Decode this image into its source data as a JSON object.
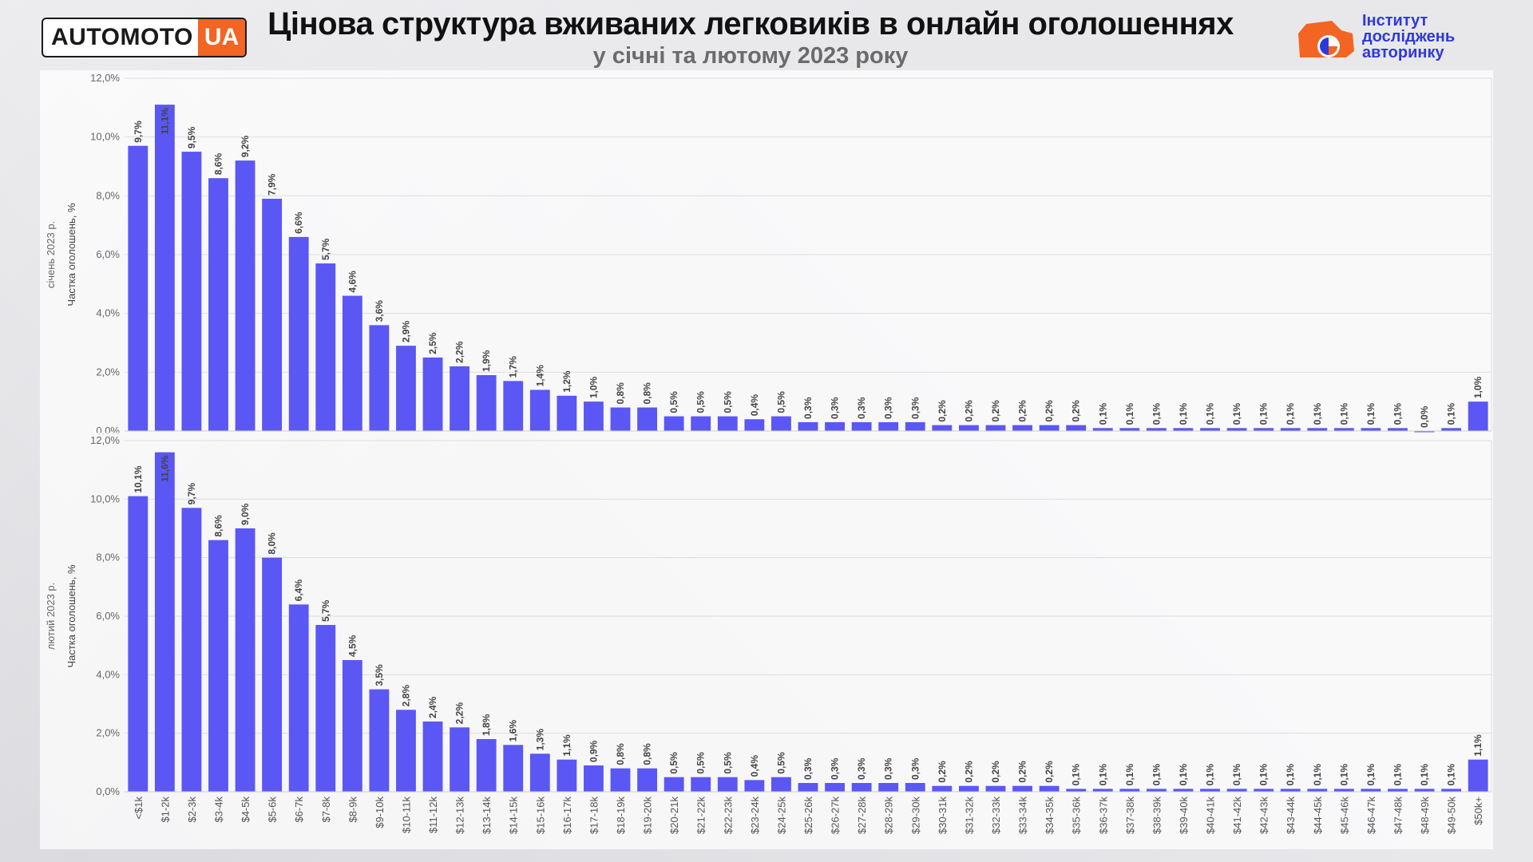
{
  "header": {
    "logo_main": "AUTOMOTO",
    "logo_accent": "UA",
    "title": "Цінова структура вживаних легковиків в онлайн оголошеннях",
    "subtitle": "у січні та лютому 2023 року",
    "institute_line1": "Інститут",
    "institute_line2": "досліджень",
    "institute_line3": "авторинку"
  },
  "colors": {
    "bar": "#5b57f4",
    "accent": "#f26522",
    "institute": "#2f3ad6",
    "grid": "#dedede"
  },
  "chart_data": [
    {
      "type": "bar",
      "title": "",
      "period_label": "січень 2023 р.",
      "ylabel": "Частка оголошень, %",
      "ylim": [
        0,
        12
      ],
      "yticks": [
        "0,0%",
        "2,0%",
        "4,0%",
        "6,0%",
        "8,0%",
        "10,0%",
        "12,0%"
      ],
      "categories": [
        "<$1k",
        "$1-2k",
        "$2-3k",
        "$3-4k",
        "$4-5k",
        "$5-6k",
        "$6-7k",
        "$7-8k",
        "$8-9k",
        "$9-10k",
        "$10-11k",
        "$11-12k",
        "$12-13k",
        "$13-14k",
        "$14-15k",
        "$15-16k",
        "$16-17k",
        "$17-18k",
        "$18-19k",
        "$19-20k",
        "$20-21k",
        "$21-22k",
        "$22-23k",
        "$23-24k",
        "$24-25k",
        "$25-26k",
        "$26-27k",
        "$27-28k",
        "$28-29k",
        "$29-30k",
        "$30-31k",
        "$31-32k",
        "$32-33k",
        "$33-34k",
        "$34-35k",
        "$35-36k",
        "$36-37k",
        "$37-38k",
        "$38-39k",
        "$39-40k",
        "$40-41k",
        "$41-42k",
        "$42-43k",
        "$43-44k",
        "$44-45k",
        "$45-46k",
        "$46-47k",
        "$47-48k",
        "$48-49k",
        "$49-50k",
        "$50k+"
      ],
      "values": [
        9.7,
        11.1,
        9.5,
        8.6,
        9.2,
        7.9,
        6.6,
        5.7,
        4.6,
        3.6,
        2.9,
        2.5,
        2.2,
        1.9,
        1.7,
        1.4,
        1.2,
        1.0,
        0.8,
        0.8,
        0.5,
        0.5,
        0.5,
        0.4,
        0.5,
        0.3,
        0.3,
        0.3,
        0.3,
        0.3,
        0.2,
        0.2,
        0.2,
        0.2,
        0.2,
        0.2,
        0.1,
        0.1,
        0.1,
        0.1,
        0.1,
        0.1,
        0.1,
        0.1,
        0.1,
        0.1,
        0.1,
        0.1,
        0.0,
        0.1,
        1.0
      ],
      "labels": [
        "9,7%",
        "11,1%",
        "9,5%",
        "8,6%",
        "9,2%",
        "7,9%",
        "6,6%",
        "5,7%",
        "4,6%",
        "3,6%",
        "2,9%",
        "2,5%",
        "2,2%",
        "1,9%",
        "1,7%",
        "1,4%",
        "1,2%",
        "1,0%",
        "0,8%",
        "0,8%",
        "0,5%",
        "0,5%",
        "0,5%",
        "0,4%",
        "0,5%",
        "0,3%",
        "0,3%",
        "0,3%",
        "0,3%",
        "0,3%",
        "0,2%",
        "0,2%",
        "0,2%",
        "0,2%",
        "0,2%",
        "0,2%",
        "0,1%",
        "0,1%",
        "0,1%",
        "0,1%",
        "0,1%",
        "0,1%",
        "0,1%",
        "0,1%",
        "0,1%",
        "0,1%",
        "0,1%",
        "0,1%",
        "0,0%",
        "0,1%",
        "1,0%"
      ],
      "show_x_labels": false,
      "grid": true
    },
    {
      "type": "bar",
      "title": "",
      "period_label": "лютий 2023 р.",
      "ylabel": "Частка оголошень, %",
      "ylim": [
        0,
        12
      ],
      "yticks": [
        "0,0%",
        "2,0%",
        "4,0%",
        "6,0%",
        "8,0%",
        "10,0%",
        "12,0%"
      ],
      "categories": [
        "<$1k",
        "$1-2k",
        "$2-3k",
        "$3-4k",
        "$4-5k",
        "$5-6k",
        "$6-7k",
        "$7-8k",
        "$8-9k",
        "$9-10k",
        "$10-11k",
        "$11-12k",
        "$12-13k",
        "$13-14k",
        "$14-15k",
        "$15-16k",
        "$16-17k",
        "$17-18k",
        "$18-19k",
        "$19-20k",
        "$20-21k",
        "$21-22k",
        "$22-23k",
        "$23-24k",
        "$24-25k",
        "$25-26k",
        "$26-27k",
        "$27-28k",
        "$28-29k",
        "$29-30k",
        "$30-31k",
        "$31-32k",
        "$32-33k",
        "$33-34k",
        "$34-35k",
        "$35-36k",
        "$36-37k",
        "$37-38k",
        "$38-39k",
        "$39-40k",
        "$40-41k",
        "$41-42k",
        "$42-43k",
        "$43-44k",
        "$44-45k",
        "$45-46k",
        "$46-47k",
        "$47-48k",
        "$48-49k",
        "$49-50k",
        "$50k+"
      ],
      "values": [
        10.1,
        11.6,
        9.7,
        8.6,
        9.0,
        8.0,
        6.4,
        5.7,
        4.5,
        3.5,
        2.8,
        2.4,
        2.2,
        1.8,
        1.6,
        1.3,
        1.1,
        0.9,
        0.8,
        0.8,
        0.5,
        0.5,
        0.5,
        0.4,
        0.5,
        0.3,
        0.3,
        0.3,
        0.3,
        0.3,
        0.2,
        0.2,
        0.2,
        0.2,
        0.2,
        0.1,
        0.1,
        0.1,
        0.1,
        0.1,
        0.1,
        0.1,
        0.1,
        0.1,
        0.1,
        0.1,
        0.1,
        0.1,
        0.1,
        0.1,
        1.1
      ],
      "labels": [
        "10,1%",
        "11,6%",
        "9,7%",
        "8,6%",
        "9,0%",
        "8,0%",
        "6,4%",
        "5,7%",
        "4,5%",
        "3,5%",
        "2,8%",
        "2,4%",
        "2,2%",
        "1,8%",
        "1,6%",
        "1,3%",
        "1,1%",
        "0,9%",
        "0,8%",
        "0,8%",
        "0,5%",
        "0,5%",
        "0,5%",
        "0,4%",
        "0,5%",
        "0,3%",
        "0,3%",
        "0,3%",
        "0,3%",
        "0,3%",
        "0,2%",
        "0,2%",
        "0,2%",
        "0,2%",
        "0,2%",
        "0,1%",
        "0,1%",
        "0,1%",
        "0,1%",
        "0,1%",
        "0,1%",
        "0,1%",
        "0,1%",
        "0,1%",
        "0,1%",
        "0,1%",
        "0,1%",
        "0,1%",
        "0,1%",
        "0,1%",
        "1,1%"
      ],
      "show_x_labels": true,
      "grid": true
    }
  ]
}
